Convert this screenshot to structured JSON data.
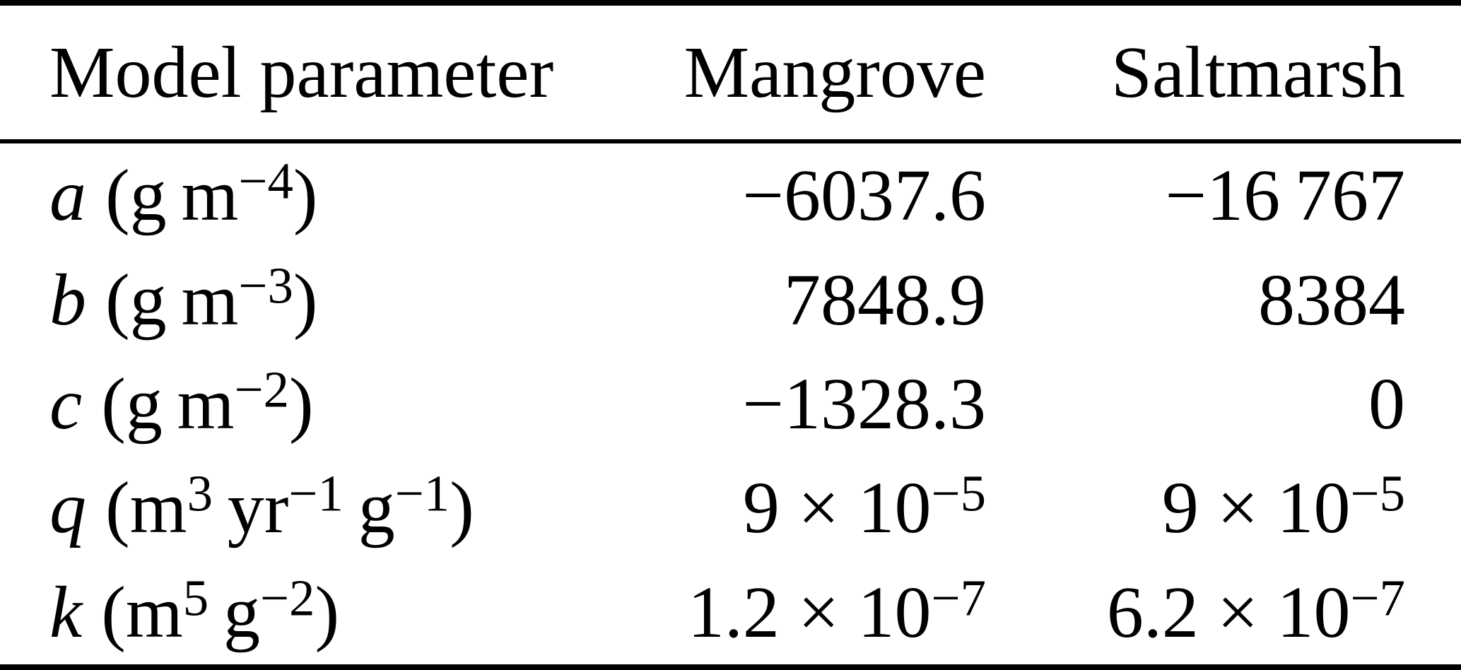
{
  "colors": {
    "background": "#ffffff",
    "text": "#000000",
    "rule": "#000000"
  },
  "table": {
    "headers": [
      "Model parameter",
      "Mangrove",
      "Saltmarsh"
    ],
    "rows": [
      {
        "symbol": "a",
        "unit": "(g m^{−4})",
        "mangrove": "−6037.6",
        "saltmarsh": "−16 767"
      },
      {
        "symbol": "b",
        "unit": "(g m^{−3})",
        "mangrove": "7848.9",
        "saltmarsh": "8384"
      },
      {
        "symbol": "c",
        "unit": "(g m^{−2})",
        "mangrove": "−1328.3",
        "saltmarsh": "0"
      },
      {
        "symbol": "q",
        "unit": "(m^{3} yr^{−1} g^{−1})",
        "mangrove": "9 × 10^{−5}",
        "saltmarsh": "9 × 10^{−5}"
      },
      {
        "symbol": "k",
        "unit": "(m^{5} g^{−2})",
        "mangrove": "1.2 × 10^{−7}",
        "saltmarsh": "6.2 × 10^{−7}"
      }
    ]
  }
}
